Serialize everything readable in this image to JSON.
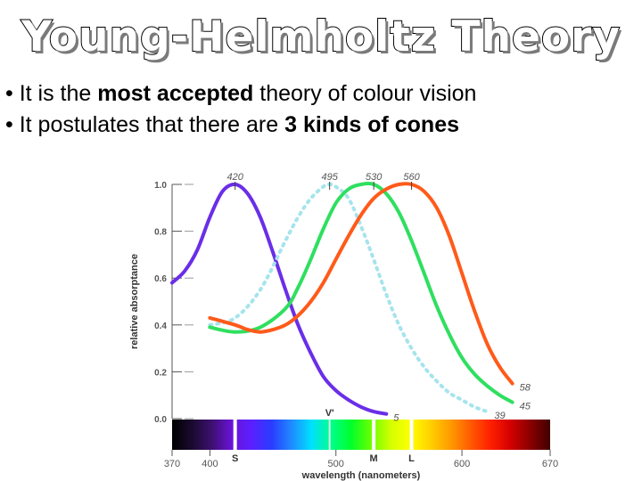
{
  "slide": {
    "title": "Young-Helmholtz Theory",
    "bullets": [
      {
        "prefix": "• It is the ",
        "bold": "most accepted",
        "suffix": " theory of colour vision"
      },
      {
        "prefix": "• It postulates that there are ",
        "bold": "3 kinds of cones",
        "suffix": ""
      }
    ]
  },
  "chart_data": {
    "type": "line",
    "title": "",
    "xlabel": "wavelength (nanometers)",
    "ylabel": "relative absorptance",
    "xlim": [
      370,
      670
    ],
    "ylim": [
      0,
      1.0
    ],
    "x_ticks": [
      370,
      400,
      500,
      600,
      670
    ],
    "y_ticks": [
      "0.0",
      "0.2",
      "0.4",
      "0.6",
      "0.8",
      "1.0"
    ],
    "peak_labels": [
      {
        "text": "420",
        "x": 420
      },
      {
        "text": "495",
        "x": 495
      },
      {
        "text": "530",
        "x": 530
      },
      {
        "text": "560",
        "x": 560
      }
    ],
    "end_labels": [
      {
        "text": "5",
        "series": "S"
      },
      {
        "text": "39",
        "series": "rod"
      },
      {
        "text": "45",
        "series": "M"
      },
      {
        "text": "58",
        "series": "L"
      }
    ],
    "cone_markers": [
      {
        "text": "S",
        "x": 420
      },
      {
        "text": "M",
        "x": 530
      },
      {
        "text": "L",
        "x": 560
      }
    ],
    "rod_marker": {
      "text": "V'",
      "x": 495
    },
    "spectrum_stops": [
      "#000000",
      "#1a0a2e",
      "#3d1070",
      "#6a12d8",
      "#5a20ff",
      "#2a3cff",
      "#1f8aff",
      "#00e0ff",
      "#00ff8a",
      "#00ff2a",
      "#6aff00",
      "#d4ff00",
      "#ffff00",
      "#ffd000",
      "#ff9a00",
      "#ff5a00",
      "#ff2000",
      "#d40000",
      "#8a0000",
      "#400000"
    ],
    "series": [
      {
        "name": "S",
        "color": "#6a2ee8",
        "dashed": false,
        "x": [
          370,
          380,
          390,
          400,
          410,
          420,
          430,
          440,
          450,
          460,
          470,
          480,
          490,
          500,
          510,
          520,
          530,
          540
        ],
        "y": [
          0.58,
          0.63,
          0.72,
          0.86,
          0.97,
          1.0,
          0.96,
          0.86,
          0.71,
          0.55,
          0.4,
          0.28,
          0.18,
          0.12,
          0.08,
          0.05,
          0.03,
          0.02
        ]
      },
      {
        "name": "rod",
        "color": "#a6e4ec",
        "dashed": true,
        "x": [
          400,
          420,
          440,
          460,
          470,
          480,
          490,
          495,
          500,
          510,
          520,
          530,
          540,
          550,
          560,
          570,
          580,
          590,
          600,
          610,
          620
        ],
        "y": [
          0.4,
          0.43,
          0.55,
          0.76,
          0.86,
          0.94,
          0.99,
          1.0,
          0.99,
          0.94,
          0.82,
          0.68,
          0.53,
          0.4,
          0.3,
          0.22,
          0.16,
          0.11,
          0.08,
          0.05,
          0.03
        ]
      },
      {
        "name": "M",
        "color": "#2fdf5f",
        "dashed": false,
        "x": [
          400,
          420,
          440,
          460,
          470,
          480,
          490,
          500,
          510,
          520,
          530,
          540,
          550,
          560,
          570,
          580,
          590,
          600,
          610,
          620,
          630,
          640
        ],
        "y": [
          0.39,
          0.37,
          0.39,
          0.47,
          0.56,
          0.68,
          0.81,
          0.92,
          0.98,
          1.0,
          1.0,
          0.96,
          0.88,
          0.76,
          0.62,
          0.48,
          0.36,
          0.26,
          0.19,
          0.14,
          0.1,
          0.07
        ]
      },
      {
        "name": "L",
        "color": "#ff5a1a",
        "dashed": false,
        "x": [
          400,
          420,
          430,
          440,
          450,
          460,
          470,
          480,
          490,
          500,
          510,
          520,
          530,
          540,
          550,
          560,
          570,
          580,
          590,
          600,
          610,
          620,
          630,
          640
        ],
        "y": [
          0.43,
          0.4,
          0.38,
          0.37,
          0.38,
          0.4,
          0.44,
          0.5,
          0.58,
          0.68,
          0.78,
          0.87,
          0.94,
          0.98,
          1.0,
          1.0,
          0.97,
          0.9,
          0.78,
          0.62,
          0.46,
          0.32,
          0.22,
          0.15
        ]
      }
    ]
  }
}
